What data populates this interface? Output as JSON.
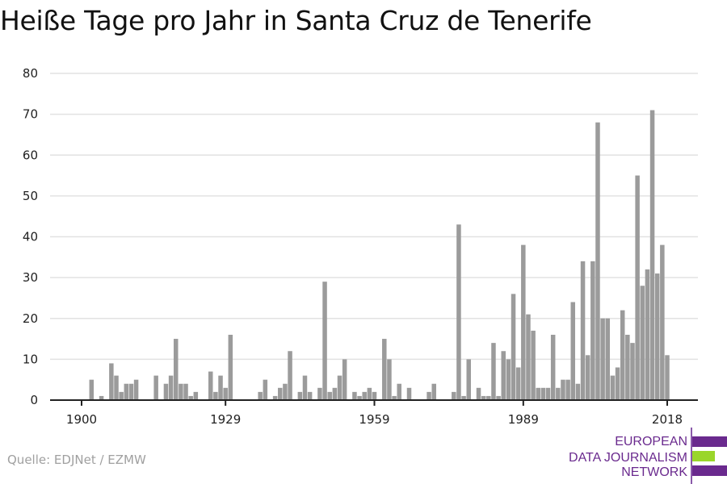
{
  "title": "Heiße Tage pro Jahr in Santa Cruz de Tenerife",
  "source": "Quelle: EDJNet / EZMW",
  "logo": {
    "lines": [
      "EUROPEAN",
      "DATA JOURNALISM",
      "NETWORK"
    ],
    "colors": {
      "purple": "#6a2a8e",
      "green": "#9ad62a"
    }
  },
  "chart_data": {
    "type": "bar",
    "title": "Heiße Tage pro Jahr in Santa Cruz de Tenerife",
    "xlabel": "",
    "ylabel": "",
    "ylim": [
      0,
      80
    ],
    "yticks": [
      0,
      10,
      20,
      30,
      40,
      50,
      60,
      70,
      80
    ],
    "xticks": [
      1900,
      1929,
      1959,
      1989,
      2018
    ],
    "grid": true,
    "bar_color": "#9b9b9b",
    "x_start": 1900,
    "values": [
      0,
      0,
      5,
      0,
      1,
      0,
      9,
      6,
      2,
      4,
      4,
      5,
      0,
      0,
      0,
      6,
      0,
      4,
      6,
      15,
      4,
      4,
      1,
      2,
      0,
      0,
      7,
      2,
      6,
      3,
      16,
      0,
      0,
      0,
      0,
      0,
      2,
      5,
      0,
      1,
      3,
      4,
      12,
      0,
      2,
      6,
      2,
      0,
      3,
      29,
      2,
      3,
      6,
      10,
      0,
      2,
      1,
      2,
      3,
      2,
      0,
      15,
      10,
      1,
      4,
      0,
      3,
      0,
      0,
      0,
      2,
      4,
      0,
      0,
      0,
      2,
      43,
      1,
      10,
      0,
      3,
      1,
      1,
      14,
      1,
      12,
      10,
      26,
      8,
      38,
      21,
      17,
      3,
      3,
      3,
      16,
      3,
      5,
      5,
      24,
      4,
      34,
      11,
      34,
      68,
      20,
      20,
      6,
      8,
      22,
      16,
      14,
      55,
      28,
      32,
      71,
      31,
      38,
      11
    ]
  }
}
